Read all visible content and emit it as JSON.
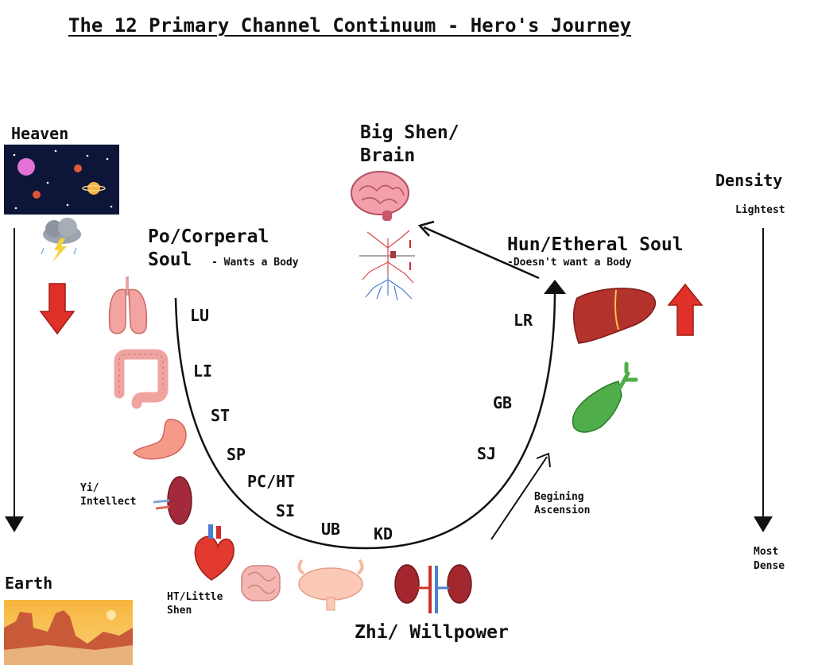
{
  "title": "The 12 Primary Channel Continuum - Hero's Journey",
  "heaven": "Heaven",
  "earth": "Earth",
  "density": {
    "label": "Density",
    "top": "Lightest",
    "bottom_line1": "Most",
    "bottom_line2": "Dense"
  },
  "big_shen": {
    "line1": "Big Shen/",
    "line2": "Brain"
  },
  "po": {
    "line1": "Po/Corperal",
    "line2": "Soul",
    "note": "- Wants a Body"
  },
  "hun": {
    "line1": "Hun/Etheral Soul",
    "note": "-Doesn't want a Body"
  },
  "channels": [
    "LU",
    "LI",
    "ST",
    "SP",
    "PC/HT",
    "SI",
    "UB",
    "KD",
    "SJ",
    "GB",
    "LR"
  ],
  "yi": {
    "line1": "Yi/",
    "line2": "Intellect"
  },
  "ht_little": {
    "line1": "HT/Little",
    "line2": "Shen"
  },
  "ascension": {
    "line1": "Begining",
    "line2": "Ascension"
  },
  "zhi": "Zhi/ Willpower",
  "colors": {
    "arrow_red": "#e0302a",
    "liver": "#b3322c",
    "gallbladder": "#4fae4a",
    "organ_pink": "#f3a3a0",
    "space": "#0d1638",
    "desert": "#c85a3a"
  }
}
